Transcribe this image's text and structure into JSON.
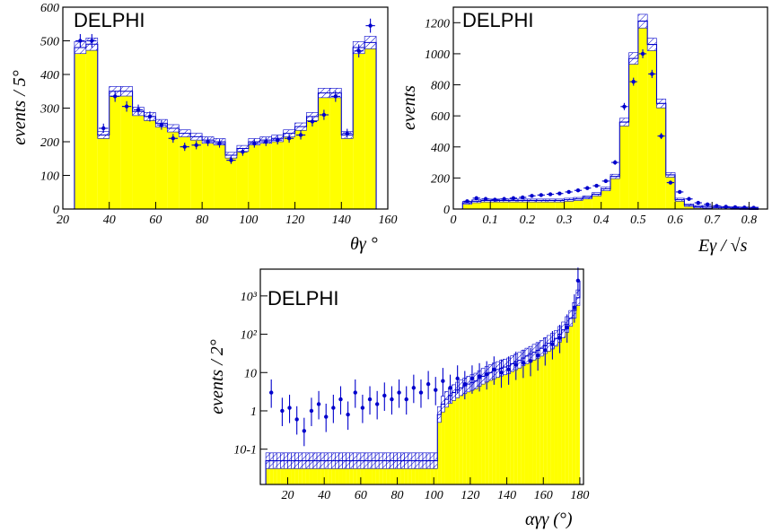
{
  "chart_data": [
    {
      "type": "bar",
      "badge": "DELPHI",
      "xlabel": "θγ °",
      "ylabel": "events / 5°",
      "xlim": [
        20,
        160
      ],
      "ylim": [
        0,
        600
      ],
      "xticks": [
        20,
        40,
        60,
        80,
        100,
        120,
        140,
        160
      ],
      "yticks": [
        0,
        100,
        200,
        300,
        400,
        500,
        600
      ],
      "bin_edges": [
        25,
        30,
        35,
        40,
        45,
        50,
        55,
        60,
        65,
        70,
        75,
        80,
        85,
        90,
        95,
        100,
        105,
        110,
        115,
        120,
        125,
        130,
        135,
        140,
        145,
        150,
        155
      ],
      "series": [
        {
          "role": "simulation",
          "values": [
            480,
            490,
            220,
            350,
            350,
            290,
            275,
            255,
            240,
            225,
            215,
            205,
            200,
            160,
            180,
            200,
            205,
            210,
            225,
            245,
            275,
            345,
            345,
            220,
            480,
            495
          ]
        },
        {
          "role": "data",
          "x": [
            27.5,
            32.5,
            37.5,
            42.5,
            47.5,
            52.5,
            57.5,
            62.5,
            67.5,
            72.5,
            77.5,
            82.5,
            87.5,
            92.5,
            97.5,
            102.5,
            107.5,
            112.5,
            117.5,
            122.5,
            127.5,
            132.5,
            137.5,
            142.5,
            147.5,
            152.5
          ],
          "values": [
            500,
            500,
            240,
            335,
            305,
            295,
            275,
            250,
            210,
            185,
            190,
            200,
            195,
            145,
            170,
            195,
            200,
            205,
            210,
            220,
            260,
            280,
            335,
            225,
            470,
            545
          ]
        }
      ]
    },
    {
      "type": "bar",
      "badge": "DELPHI",
      "xlabel": "Eγ / √s",
      "ylabel": "events",
      "xlim": [
        0,
        0.85
      ],
      "ylim": [
        0,
        1300
      ],
      "xticks": [
        "0",
        "0.1",
        "0.2",
        "0.3",
        "0.4",
        "0.5",
        "0.6",
        "0.7",
        "0.8"
      ],
      "yticks": [
        0,
        200,
        400,
        600,
        800,
        1000,
        1200
      ],
      "bin_edges": [
        0.025,
        0.05,
        0.075,
        0.1,
        0.125,
        0.15,
        0.175,
        0.2,
        0.225,
        0.25,
        0.275,
        0.3,
        0.325,
        0.35,
        0.375,
        0.4,
        0.425,
        0.45,
        0.475,
        0.5,
        0.525,
        0.55,
        0.575,
        0.6,
        0.625,
        0.65,
        0.675,
        0.7,
        0.725,
        0.75,
        0.775,
        0.8,
        0.825
      ],
      "series": [
        {
          "role": "simulation",
          "values": [
            40,
            50,
            55,
            55,
            55,
            55,
            55,
            55,
            55,
            55,
            55,
            60,
            65,
            75,
            95,
            130,
            210,
            560,
            970,
            1210,
            1060,
            680,
            220,
            60,
            25,
            15,
            12,
            10,
            8,
            6,
            5,
            4
          ]
        },
        {
          "role": "data",
          "x": [
            0.0375,
            0.0625,
            0.0875,
            0.1125,
            0.1375,
            0.1625,
            0.1875,
            0.2125,
            0.2375,
            0.2625,
            0.2875,
            0.3125,
            0.3375,
            0.3625,
            0.3875,
            0.4125,
            0.4375,
            0.4625,
            0.4875,
            0.5125,
            0.5375,
            0.5625,
            0.5875,
            0.6125,
            0.6375,
            0.6625,
            0.6875,
            0.7125,
            0.7375,
            0.7625,
            0.7875,
            0.8125
          ],
          "values": [
            50,
            70,
            65,
            60,
            65,
            70,
            75,
            85,
            90,
            95,
            100,
            110,
            120,
            135,
            150,
            180,
            300,
            660,
            820,
            1000,
            870,
            470,
            170,
            110,
            65,
            40,
            30,
            20,
            15,
            12,
            10,
            8
          ]
        }
      ]
    },
    {
      "type": "bar",
      "badge": "DELPHI",
      "xlabel": "αγγ (°)",
      "ylabel": "events / 2°",
      "log_y": true,
      "xlim": [
        5,
        182
      ],
      "ylim": [
        0.012,
        5000
      ],
      "xticks": [
        20,
        40,
        60,
        80,
        100,
        120,
        140,
        160,
        180
      ],
      "yticks": [
        "10-1",
        "1",
        "10",
        "10²",
        "10³"
      ],
      "bin_edges": [
        8,
        10,
        12,
        14,
        16,
        18,
        20,
        22,
        24,
        26,
        28,
        30,
        32,
        34,
        36,
        38,
        40,
        42,
        44,
        46,
        48,
        50,
        52,
        54,
        56,
        58,
        60,
        62,
        64,
        66,
        68,
        70,
        72,
        74,
        76,
        78,
        80,
        82,
        84,
        86,
        88,
        90,
        92,
        94,
        96,
        98,
        100,
        102,
        104,
        106,
        108,
        110,
        112,
        114,
        116,
        118,
        120,
        122,
        124,
        126,
        128,
        130,
        132,
        134,
        136,
        138,
        140,
        142,
        144,
        146,
        148,
        150,
        152,
        154,
        156,
        158,
        160,
        162,
        164,
        166,
        168,
        170,
        172,
        174,
        176,
        178,
        180
      ],
      "series": [
        {
          "role": "simulation",
          "values": [
            0.05,
            0.05,
            0.05,
            0.05,
            0.05,
            0.05,
            0.05,
            0.05,
            0.05,
            0.05,
            0.05,
            0.05,
            0.05,
            0.05,
            0.05,
            0.05,
            0.05,
            0.05,
            0.05,
            0.05,
            0.05,
            0.05,
            0.05,
            0.05,
            0.05,
            0.05,
            0.05,
            0.05,
            0.05,
            0.05,
            0.05,
            0.05,
            0.05,
            0.05,
            0.05,
            0.05,
            0.05,
            0.05,
            0.05,
            0.05,
            0.05,
            0.05,
            0.05,
            0.05,
            0.05,
            0.05,
            0.05,
            0.8,
            1.5,
            2,
            2.5,
            3,
            3.5,
            4,
            4.5,
            5,
            5.5,
            6,
            7,
            8,
            9,
            10,
            11,
            12,
            13,
            14,
            15,
            17,
            19,
            21,
            24,
            27,
            30,
            34,
            38,
            43,
            50,
            58,
            66,
            78,
            100,
            130,
            180,
            260,
            420,
            900,
            2500
          ]
        },
        {
          "role": "data",
          "x": [
            11,
            17,
            21,
            25,
            29,
            33,
            37,
            41,
            45,
            49,
            53,
            57,
            61,
            65,
            69,
            73,
            77,
            81,
            85,
            89,
            93,
            97,
            101,
            105,
            109,
            113,
            117,
            121,
            125,
            129,
            133,
            137,
            141,
            145,
            149,
            153,
            157,
            161,
            165,
            169,
            173,
            177,
            179
          ],
          "values": [
            3,
            1,
            1.2,
            0.6,
            0.3,
            1,
            1.5,
            0.7,
            1.2,
            2,
            0.8,
            3,
            1.2,
            2,
            1.5,
            2.5,
            2,
            3,
            2,
            4,
            3,
            5,
            3.5,
            6,
            4,
            7,
            5,
            7,
            8,
            9,
            12,
            10,
            12,
            16,
            18,
            20,
            28,
            38,
            55,
            80,
            150,
            500,
            2500
          ]
        }
      ]
    }
  ]
}
